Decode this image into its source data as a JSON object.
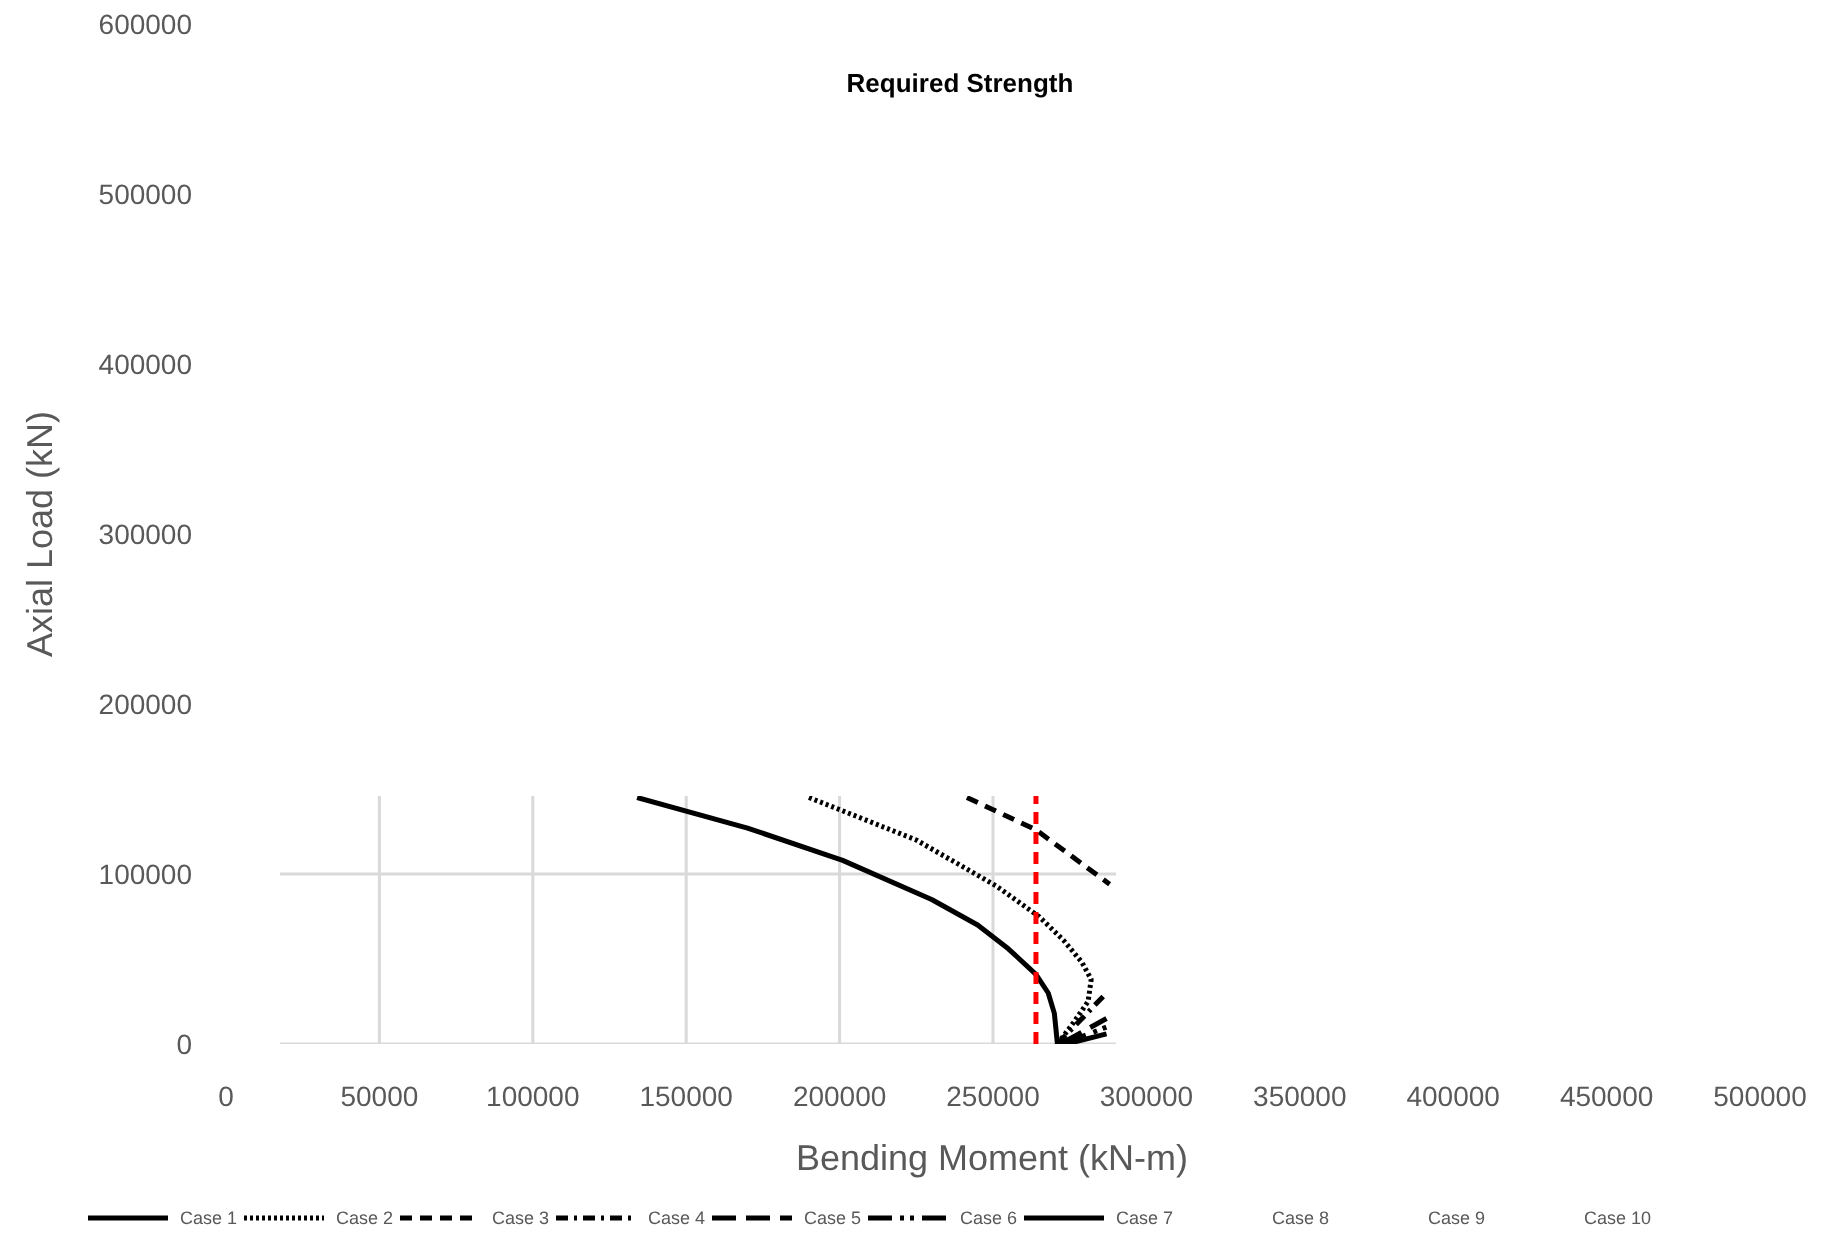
{
  "chart_data": {
    "type": "line",
    "title": "Required Strength",
    "xlabel": "Bending Moment (kN-m)",
    "ylabel": "Axial Load (kN)",
    "xlim": [
      0,
      500000
    ],
    "ylim": [
      0,
      600000
    ],
    "xticks": [
      0,
      50000,
      100000,
      150000,
      200000,
      250000,
      300000,
      350000,
      400000,
      450000,
      500000
    ],
    "yticks": [
      0,
      100000,
      200000,
      300000,
      400000,
      500000,
      600000
    ],
    "grid": true,
    "legend": "bottom",
    "ref_lines": [
      {
        "axis": "x",
        "value": 264000,
        "color": "#ff0000",
        "line_style": "dashed"
      }
    ],
    "series": [
      {
        "name": "Case 1",
        "color": "#000000",
        "line_style": "solid",
        "x": [
          134000,
          170000,
          201000,
          230000,
          245000,
          255000,
          264000,
          268000,
          270000,
          271000
        ],
        "values": [
          145000,
          127000,
          108000,
          85000,
          70000,
          56000,
          41000,
          30000,
          18000,
          0
        ]
      },
      {
        "name": "Case 2",
        "color": "#000000",
        "line_style": "dotted",
        "x": [
          190000,
          225000,
          251000,
          265000,
          273000,
          279000,
          282000,
          281000,
          276000,
          271000
        ],
        "values": [
          145000,
          120000,
          93000,
          75000,
          61000,
          48000,
          38000,
          25000,
          12000,
          0
        ]
      },
      {
        "name": "Case 3",
        "color": "#000000",
        "line_style": "dashed",
        "x": [
          241500,
          264000,
          288000
        ],
        "values": [
          145000,
          126000,
          94000
        ]
      },
      {
        "name": "Case 4",
        "color": "#000000",
        "line_style": "dashdot",
        "x": [
          271000,
          287000
        ],
        "values": [
          0,
          30000
        ]
      },
      {
        "name": "Case 5",
        "color": "#000000",
        "line_style": "longdash",
        "x": [
          272000,
          287000
        ],
        "values": [
          0,
          15000
        ]
      },
      {
        "name": "Case 6",
        "color": "#000000",
        "line_style": "longdashdot",
        "x": [
          273000,
          287000
        ],
        "values": [
          0,
          10000
        ]
      },
      {
        "name": "Case 7",
        "color": "#000000",
        "line_style": "solid",
        "x": [
          274000,
          287000
        ],
        "values": [
          0,
          6000
        ]
      },
      {
        "name": "Case 8"
      },
      {
        "name": "Case 9"
      },
      {
        "name": "Case 10"
      }
    ]
  }
}
